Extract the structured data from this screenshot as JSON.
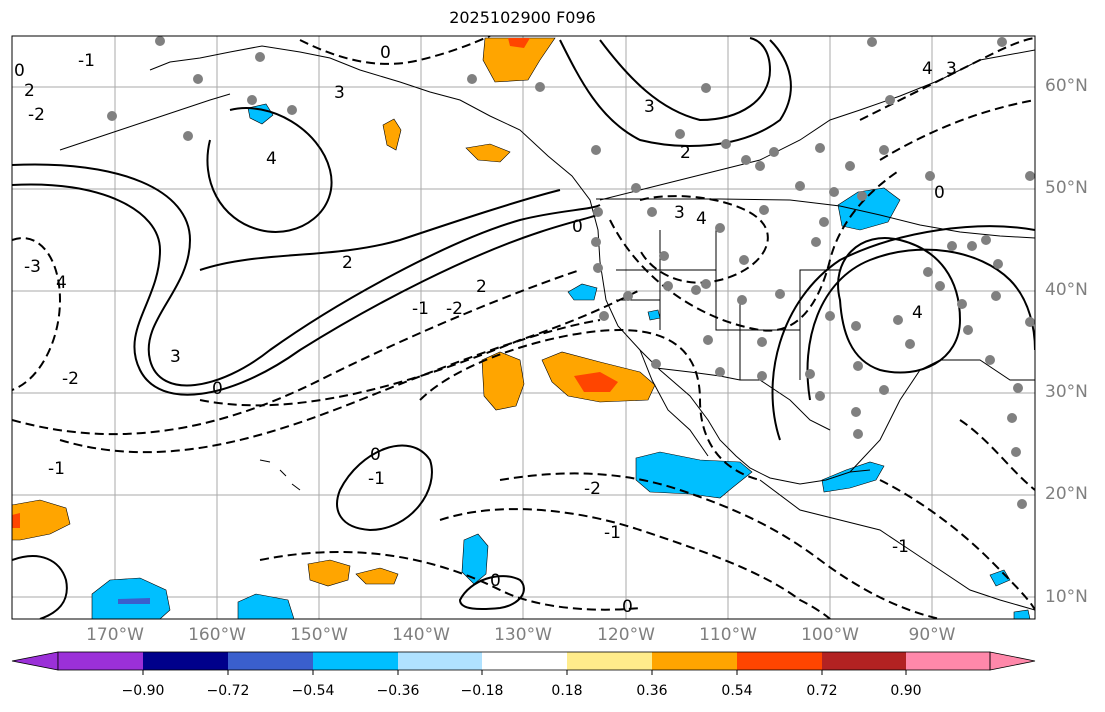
{
  "title": "2025102900 F096",
  "map": {
    "lat_labels": [
      "60°N",
      "50°N",
      "40°N",
      "30°N",
      "20°N",
      "10°N"
    ],
    "lon_labels": [
      "170°W",
      "160°W",
      "150°W",
      "140°W",
      "130°W",
      "120°W",
      "110°W",
      "100°W",
      "90°W"
    ],
    "contour_labels": [
      "0",
      "-1",
      "2",
      "3",
      "4",
      "-2",
      "-3",
      "0",
      "2",
      "3",
      "-1",
      "-2",
      "2",
      "4",
      "-1",
      "0",
      "-2",
      "-1",
      "0",
      "3",
      "2",
      "0",
      "4",
      "-1",
      "0",
      "3",
      "4",
      "3",
      "4",
      "0",
      "-1",
      "-2",
      "0"
    ]
  },
  "colorbar": {
    "tick_labels": [
      "−0.90",
      "−0.72",
      "−0.54",
      "−0.36",
      "−0.18",
      "0.18",
      "0.36",
      "0.54",
      "0.72",
      "0.90"
    ],
    "colors": [
      "#9b30d8",
      "#00008b",
      "#3a5fcd",
      "#00bfff",
      "#b0e2ff",
      "#ffffff",
      "#ffec8b",
      "#ffa500",
      "#ff4500",
      "#b22222",
      "#ff88aa"
    ]
  },
  "colors": {
    "grid": "#aaaaaa",
    "label_gray": "#7f7f7f",
    "station_dot": "#808080"
  }
}
